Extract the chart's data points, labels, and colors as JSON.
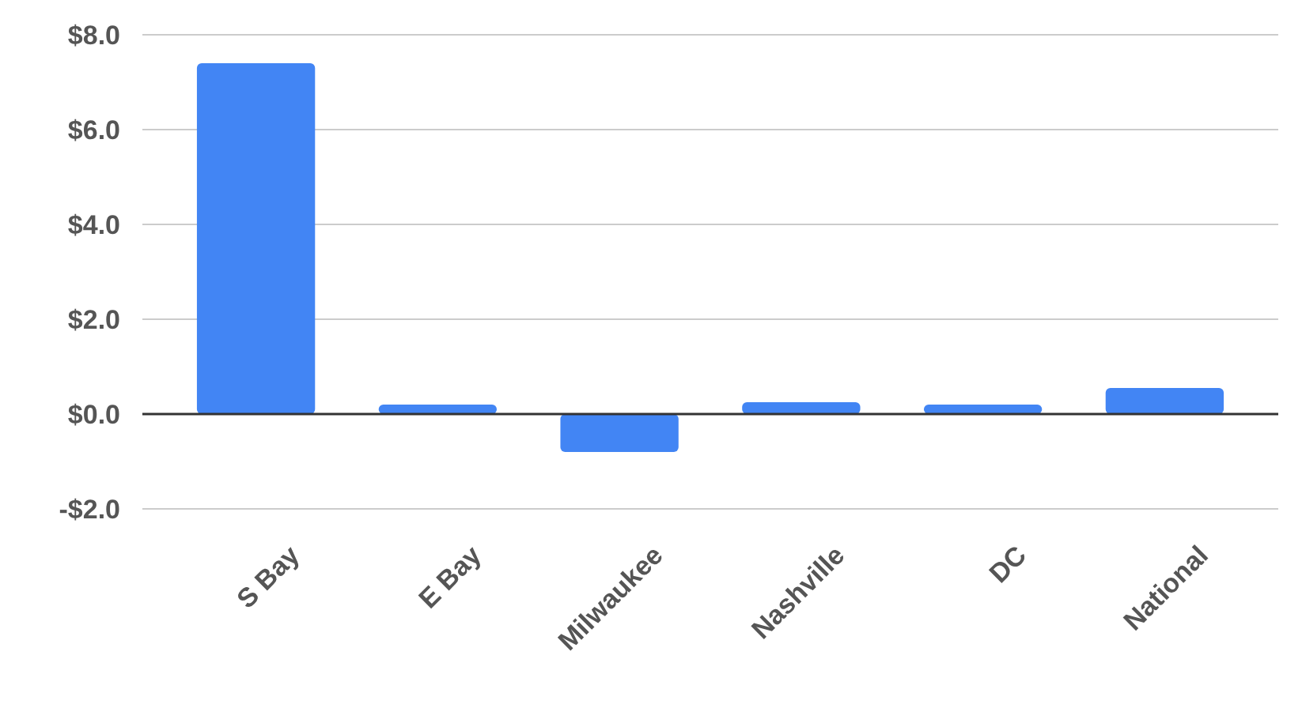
{
  "chart_data": {
    "type": "bar",
    "categories": [
      "S Bay",
      "E Bay",
      "Milwaukee",
      "Nashville",
      "DC",
      "National"
    ],
    "values": [
      7.4,
      0.2,
      -0.8,
      0.25,
      0.2,
      0.55
    ],
    "color": "#4285f4",
    "ylim": [
      -2,
      8
    ],
    "yticks": [
      {
        "value": -2,
        "label": "-$2.0"
      },
      {
        "value": 0,
        "label": "$0.0"
      },
      {
        "value": 2,
        "label": "$2.0"
      },
      {
        "value": 4,
        "label": "$4.0"
      },
      {
        "value": 6,
        "label": "$6.0"
      },
      {
        "value": 8,
        "label": "$8.0"
      }
    ],
    "grid": "y"
  }
}
